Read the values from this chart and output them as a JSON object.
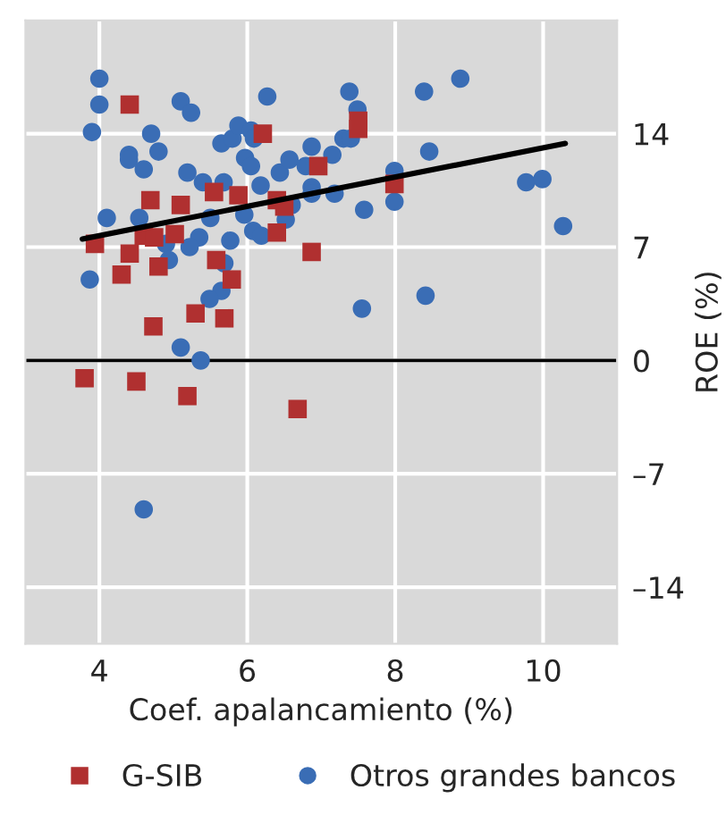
{
  "chart_data": {
    "type": "scatter",
    "xlabel": "Coef. apalancamiento (%)",
    "ylabel": "ROE (%)",
    "xlim": [
      3,
      11
    ],
    "xticks": [
      4,
      6,
      8,
      10
    ],
    "ylim": [
      -17.5,
      21
    ],
    "yticks": [
      {
        "value": -14,
        "label": "–14"
      },
      {
        "value": -7,
        "label": "–7"
      },
      0,
      7,
      14
    ],
    "grid": true,
    "legend": "bottom",
    "tick_labels": true,
    "ref_lines": [
      {
        "axis": "y",
        "value": 0,
        "label": null,
        "color": "#000000"
      }
    ],
    "series": [
      {
        "name": "G-SIB",
        "color": "#b03030",
        "marker": "square",
        "x": [
          4.41,
          6.21,
          4.69,
          5.1,
          5.55,
          5.88,
          6.4,
          6.5,
          6.96,
          3.94,
          4.6,
          4.74,
          5.02,
          6.4,
          6.87,
          4.41,
          4.3,
          4.8,
          5.58,
          5.79,
          5.3,
          5.69,
          4.73,
          3.8,
          4.5,
          5.19,
          6.68,
          7.5,
          7.5,
          7.99
        ],
        "values": [
          15.8,
          14.0,
          9.9,
          9.6,
          10.4,
          10.2,
          9.9,
          9.5,
          12.0,
          7.2,
          7.7,
          7.6,
          7.8,
          7.9,
          6.7,
          6.6,
          5.3,
          5.8,
          6.2,
          5.0,
          2.9,
          2.6,
          2.1,
          -1.1,
          -1.3,
          -2.2,
          -3.0,
          14.8,
          14.3,
          10.9
        ]
      },
      {
        "name": "Otros grandes bancos",
        "color": "#3a6db5",
        "marker": "circle",
        "x": [
          4.0,
          4.0,
          3.9,
          4.4,
          4.4,
          4.7,
          4.8,
          4.6,
          5.1,
          5.24,
          5.19,
          5.4,
          5.68,
          5.5,
          5.65,
          5.8,
          5.88,
          6.05,
          6.09,
          5.97,
          6.05,
          6.27,
          6.18,
          6.44,
          6.57,
          6.79,
          6.87,
          6.87,
          6.87,
          4.1,
          4.54,
          5.96,
          6.52,
          6.6,
          4.9,
          5.35,
          5.22,
          5.77,
          6.08,
          6.19,
          4.94,
          5.69,
          3.87,
          5.65,
          5.49,
          5.1,
          5.37,
          4.6,
          7.38,
          7.49,
          7.15,
          7.3,
          7.4,
          7.18,
          7.58,
          7.99,
          7.99,
          8.39,
          8.88,
          8.46,
          9.77,
          9.99,
          10.27,
          7.55,
          8.41
        ],
        "values": [
          17.4,
          15.8,
          14.1,
          12.7,
          12.4,
          14.0,
          12.9,
          11.8,
          16.0,
          15.3,
          11.6,
          11.0,
          11.0,
          8.8,
          13.4,
          13.7,
          14.5,
          14.2,
          13.7,
          12.5,
          12.0,
          16.3,
          10.8,
          11.6,
          12.4,
          12.0,
          13.2,
          10.7,
          10.3,
          8.8,
          8.8,
          9.0,
          8.7,
          9.6,
          7.2,
          7.6,
          7.0,
          7.4,
          8.0,
          7.7,
          6.2,
          6.0,
          5.0,
          4.3,
          3.8,
          0.8,
          0.0,
          -9.2,
          16.6,
          15.5,
          12.7,
          13.7,
          13.7,
          10.3,
          9.3,
          11.7,
          9.8,
          16.6,
          17.4,
          12.9,
          11.0,
          11.2,
          8.3,
          3.2,
          4.0
        ]
      },
      {
        "type": "line",
        "color": "#000000",
        "line_style": "solid",
        "marker": "none",
        "x": [
          3.77,
          10.3
        ],
        "values": [
          7.5,
          13.4
        ]
      }
    ]
  }
}
